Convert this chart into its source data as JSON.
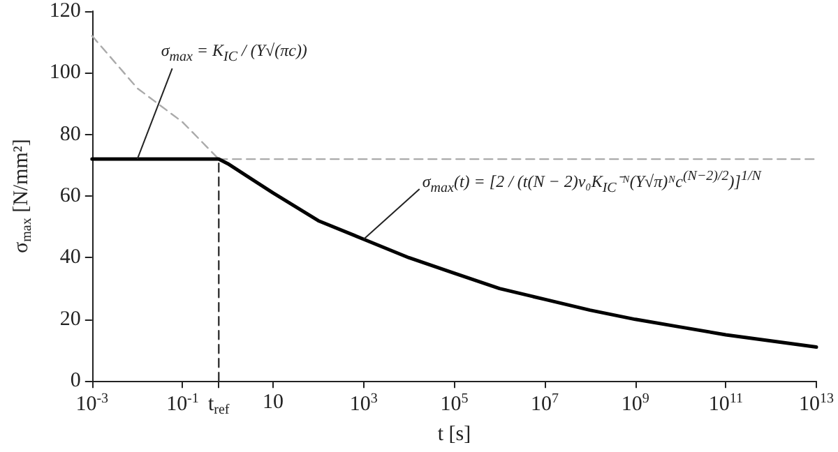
{
  "chart_data": {
    "type": "line",
    "xlabel": "t [s]",
    "ylabel": "σ$_{max}$ [N/mm²]",
    "log": "x",
    "marker": "none",
    "grid": false,
    "xlim": [
      0.001,
      10000000000000
    ],
    "ylim": [
      0,
      120
    ],
    "xticks": [
      {
        "value": 0.001,
        "label": "10$^{-3}$"
      },
      {
        "value": 0.1,
        "label": "10$^{-1}$"
      },
      10,
      {
        "value": 1000,
        "label": "10$^{3}$"
      },
      {
        "value": 100000,
        "label": "10$^{5}$"
      },
      {
        "value": 10000000,
        "label": "10$^{7}$"
      },
      {
        "value": 1000000000,
        "label": "10$^{9}$"
      },
      {
        "value": 100000000000,
        "label": "10$^{11}$"
      },
      {
        "value": 10000000000000,
        "label": "10$^{13}$"
      },
      {
        "value": 0.63,
        "label": "t$_{ref}$"
      }
    ],
    "yticks": [
      0,
      20,
      40,
      60,
      80,
      100,
      120
    ],
    "series": [
      {
        "color": "#000000",
        "line_style": "solid",
        "x": [
          0.001,
          0.63,
          1,
          10,
          100,
          1000,
          10000,
          100000,
          1000000,
          10000000,
          100000000,
          1000000000,
          10000000000,
          100000000000,
          1000000000000,
          10000000000000
        ],
        "values": [
          72,
          72,
          70.5,
          61,
          52,
          46,
          40,
          35,
          30,
          26.5,
          23,
          20,
          17.5,
          15,
          13,
          11
        ]
      },
      {
        "color": "#aaaaaa",
        "line_style": "dashed",
        "x": [
          0.001,
          0.01,
          0.1,
          0.63
        ],
        "values": [
          112,
          95,
          84,
          72
        ]
      },
      {
        "color": "#aaaaaa",
        "line_style": "dashed",
        "x": [
          0.63,
          10000000000000
        ],
        "values": [
          72,
          72
        ]
      },
      {
        "color": "#333333",
        "line_style": "dashed",
        "x": [
          0.63,
          0.63
        ],
        "values": [
          0,
          72
        ]
      }
    ],
    "annotations": [
      {
        "text": "σ$_{max}$ = K$_{IC}$ / (Y√(πc))",
        "x": 0.01,
        "y": 72
      },
      {
        "text": "σ$_{max}$(t) = [2 / (t(N − 2)v₀K$_{IC}$⁻ᴺ(Y√π)ᴺc$^{(N−2)/2}$)]$^{1/N}$",
        "x": 1000,
        "y": 46
      }
    ]
  }
}
